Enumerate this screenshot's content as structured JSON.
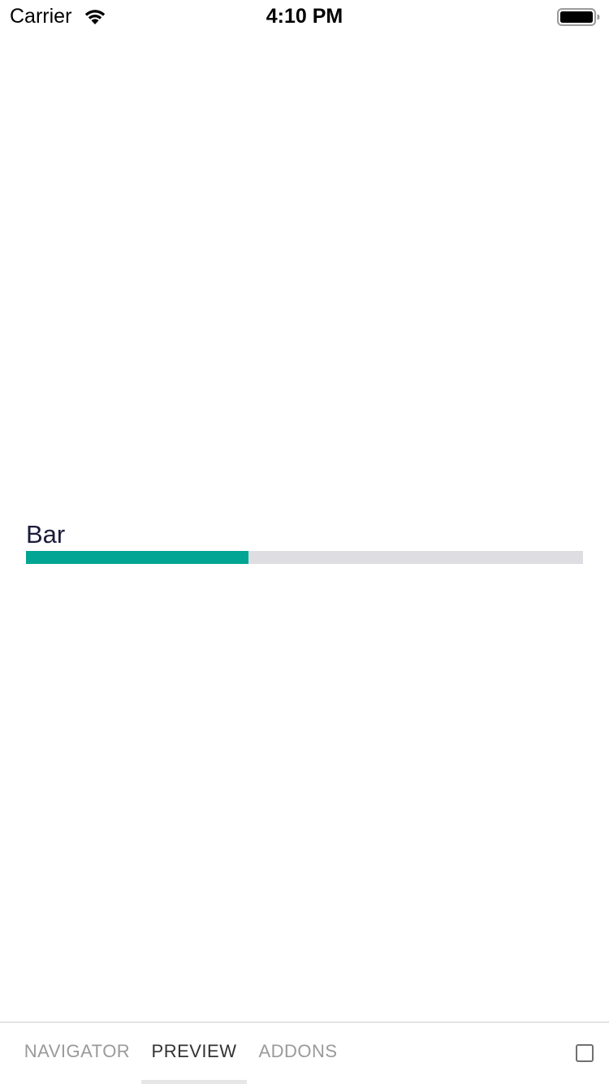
{
  "status_bar": {
    "carrier": "Carrier",
    "time": "4:10 PM",
    "icons": [
      "wifi-icon",
      "battery-icon"
    ]
  },
  "progress": {
    "label": "Bar",
    "value_fraction": 0.4,
    "fill_color": "#02a593",
    "track_color": "#dddde2"
  },
  "tab_bar": {
    "tabs": [
      {
        "label": "NAVIGATOR",
        "active": false
      },
      {
        "label": "PREVIEW",
        "active": true
      },
      {
        "label": "ADDONS",
        "active": false
      }
    ],
    "right_icon": "square-checkbox-icon"
  }
}
